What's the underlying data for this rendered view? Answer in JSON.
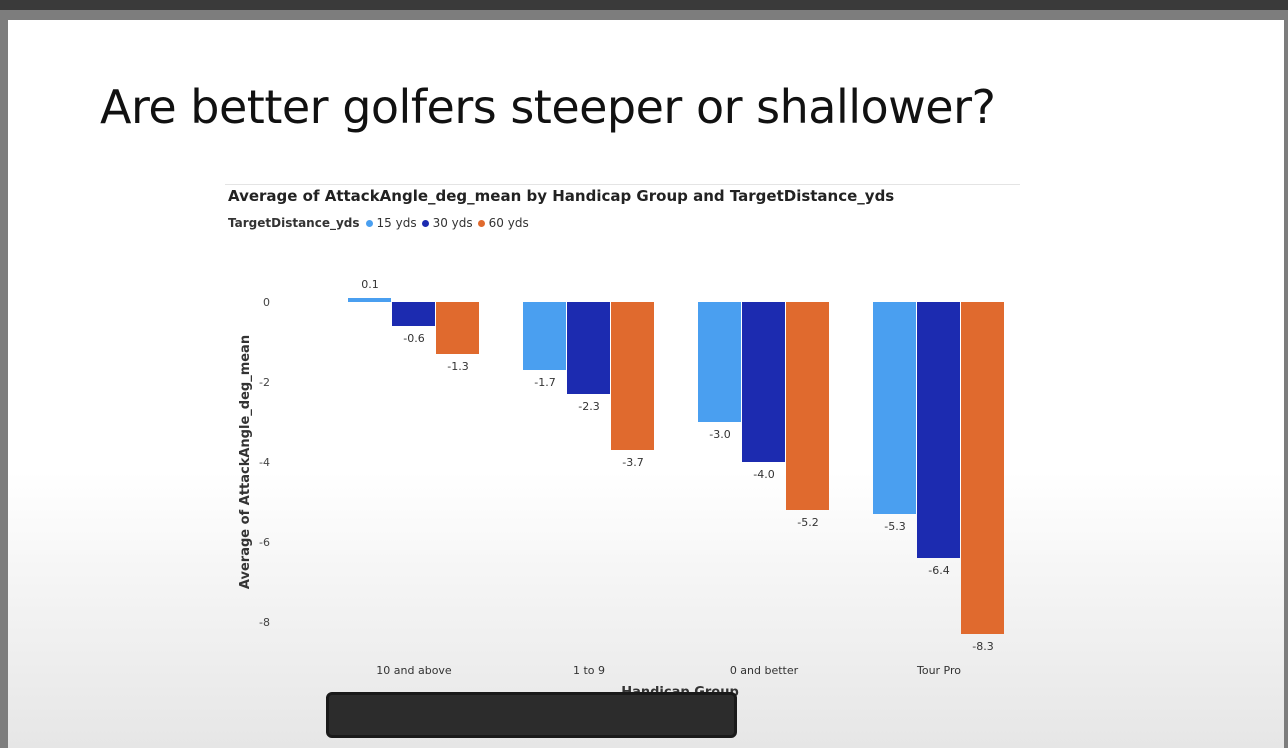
{
  "slide": {
    "title": "Are better golfers steeper or shallower?"
  },
  "chart_data": {
    "type": "bar",
    "title": "Average of AttackAngle_deg_mean by Handicap Group and TargetDistance_yds",
    "xlabel": "Handicap Group",
    "ylabel": "Average of AttackAngle_deg_mean",
    "legend_title": "TargetDistance_yds",
    "legend_position": "top-left",
    "categories": [
      "10 and above",
      "1 to 9",
      "0 and better",
      "Tour Pro"
    ],
    "series": [
      {
        "name": "15 yds",
        "color": "#4a9ff0",
        "values": [
          0.1,
          -1.7,
          -3.0,
          -5.3
        ]
      },
      {
        "name": "30 yds",
        "color": "#1c2bb0",
        "values": [
          -0.6,
          -2.3,
          -4.0,
          -6.4
        ]
      },
      {
        "name": "60 yds",
        "color": "#e06a2e",
        "values": [
          -1.3,
          -3.7,
          -5.2,
          -8.3
        ]
      }
    ],
    "data_labels": [
      [
        "0.1",
        "-1.7",
        "-3.0",
        "-5.3"
      ],
      [
        "-0.6",
        "-2.3",
        "-4.0",
        "-6.4"
      ],
      [
        "-1.3",
        "-3.7",
        "-5.2",
        "-8.3"
      ]
    ],
    "yticks": [
      0,
      -2,
      -4,
      -6,
      -8
    ],
    "ytick_labels": [
      "0",
      "-2",
      "-4",
      "-6",
      "-8"
    ],
    "ylim": [
      -8.4,
      0.25
    ],
    "grid": false
  }
}
